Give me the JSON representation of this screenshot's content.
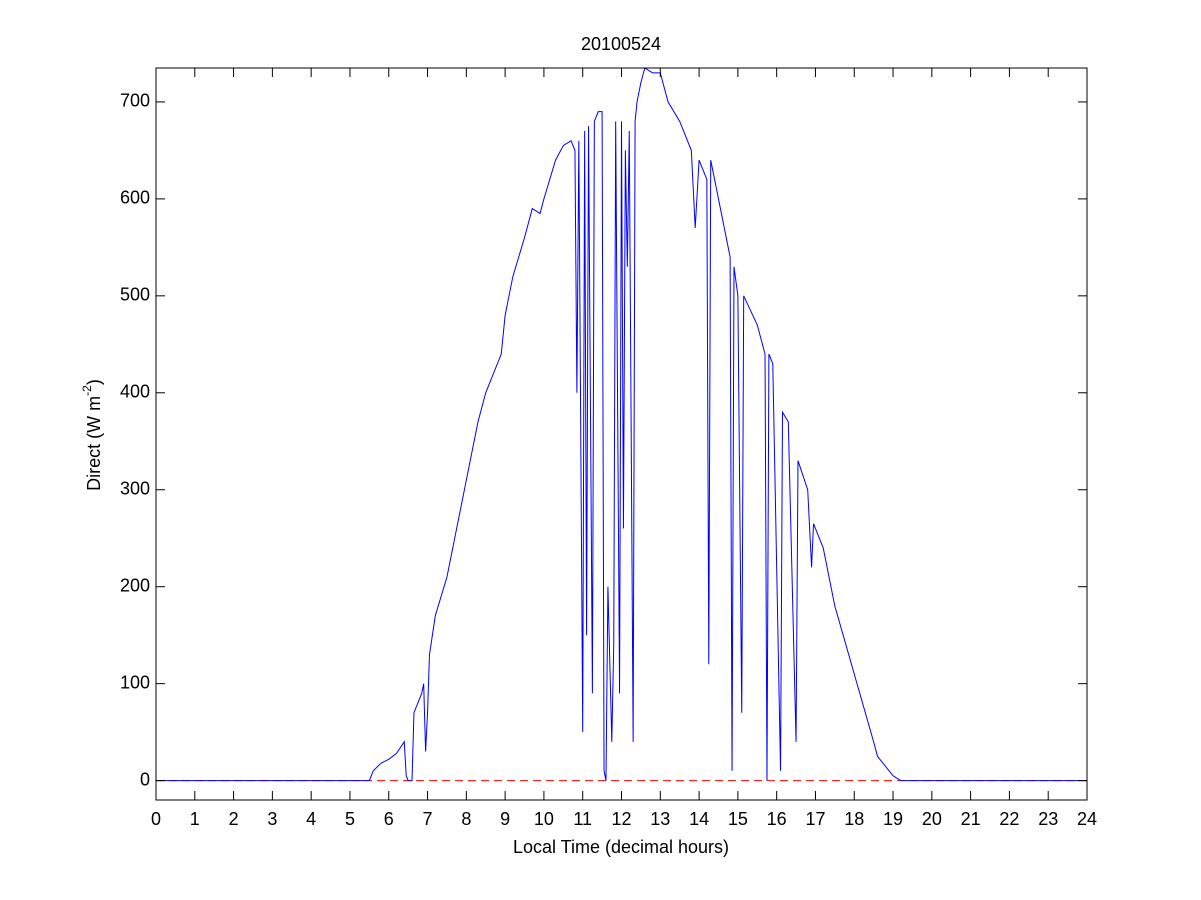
{
  "chart_data": {
    "type": "line",
    "title": "20100524",
    "x_label": "Local Time (decimal hours)",
    "y_label_parts": [
      "Direct (W m",
      "-2",
      ")"
    ],
    "xlim": [
      0,
      24
    ],
    "ylim": [
      -20,
      735
    ],
    "xticks": [
      0,
      1,
      2,
      3,
      4,
      5,
      6,
      7,
      8,
      9,
      10,
      11,
      12,
      13,
      14,
      15,
      16,
      17,
      18,
      19,
      20,
      21,
      22,
      23,
      24
    ],
    "yticks": [
      0,
      100,
      200,
      300,
      400,
      500,
      600,
      700
    ],
    "grid": false,
    "reference_line": {
      "value": 0,
      "color": "#ff0000",
      "dashed": true
    },
    "series": [
      {
        "color": "#0000ff",
        "x": [
          0,
          5.5,
          5.6,
          5.8,
          6.0,
          6.2,
          6.4,
          6.45,
          6.5,
          6.6,
          6.65,
          6.8,
          6.85,
          6.9,
          6.95,
          7.0,
          7.05,
          7.2,
          7.5,
          8.0,
          8.3,
          8.5,
          8.9,
          9.0,
          9.2,
          9.5,
          9.7,
          9.9,
          10.0,
          10.3,
          10.5,
          10.7,
          10.8,
          10.85,
          10.9,
          11.0,
          11.05,
          11.1,
          11.15,
          11.25,
          11.3,
          11.4,
          11.5,
          11.55,
          11.6,
          11.65,
          11.75,
          11.8,
          11.85,
          11.95,
          12.0,
          12.05,
          12.1,
          12.15,
          12.2,
          12.3,
          12.35,
          12.4,
          12.5,
          12.6,
          12.8,
          13.0,
          13.2,
          13.5,
          13.8,
          13.9,
          14.0,
          14.2,
          14.25,
          14.3,
          14.5,
          14.8,
          14.85,
          14.9,
          15.0,
          15.1,
          15.15,
          15.5,
          15.7,
          15.75,
          15.8,
          15.9,
          16.1,
          16.15,
          16.3,
          16.5,
          16.55,
          16.8,
          16.9,
          16.95,
          17.2,
          17.5,
          18.0,
          18.5,
          18.6,
          18.8,
          19.0,
          19.2,
          24
        ],
        "values": [
          0,
          0,
          10,
          18,
          22,
          28,
          40,
          5,
          0,
          0,
          70,
          85,
          90,
          100,
          30,
          70,
          130,
          170,
          210,
          310,
          370,
          400,
          440,
          480,
          520,
          560,
          590,
          585,
          600,
          640,
          655,
          660,
          650,
          400,
          660,
          50,
          670,
          150,
          675,
          90,
          680,
          690,
          690,
          10,
          0,
          200,
          40,
          140,
          680,
          90,
          680,
          260,
          650,
          530,
          670,
          40,
          680,
          700,
          720,
          735,
          730,
          730,
          700,
          680,
          650,
          570,
          640,
          620,
          120,
          640,
          600,
          540,
          10,
          530,
          500,
          70,
          500,
          470,
          440,
          0,
          440,
          430,
          10,
          380,
          370,
          40,
          330,
          300,
          220,
          265,
          240,
          180,
          110,
          40,
          25,
          15,
          5,
          0,
          0
        ]
      }
    ]
  }
}
